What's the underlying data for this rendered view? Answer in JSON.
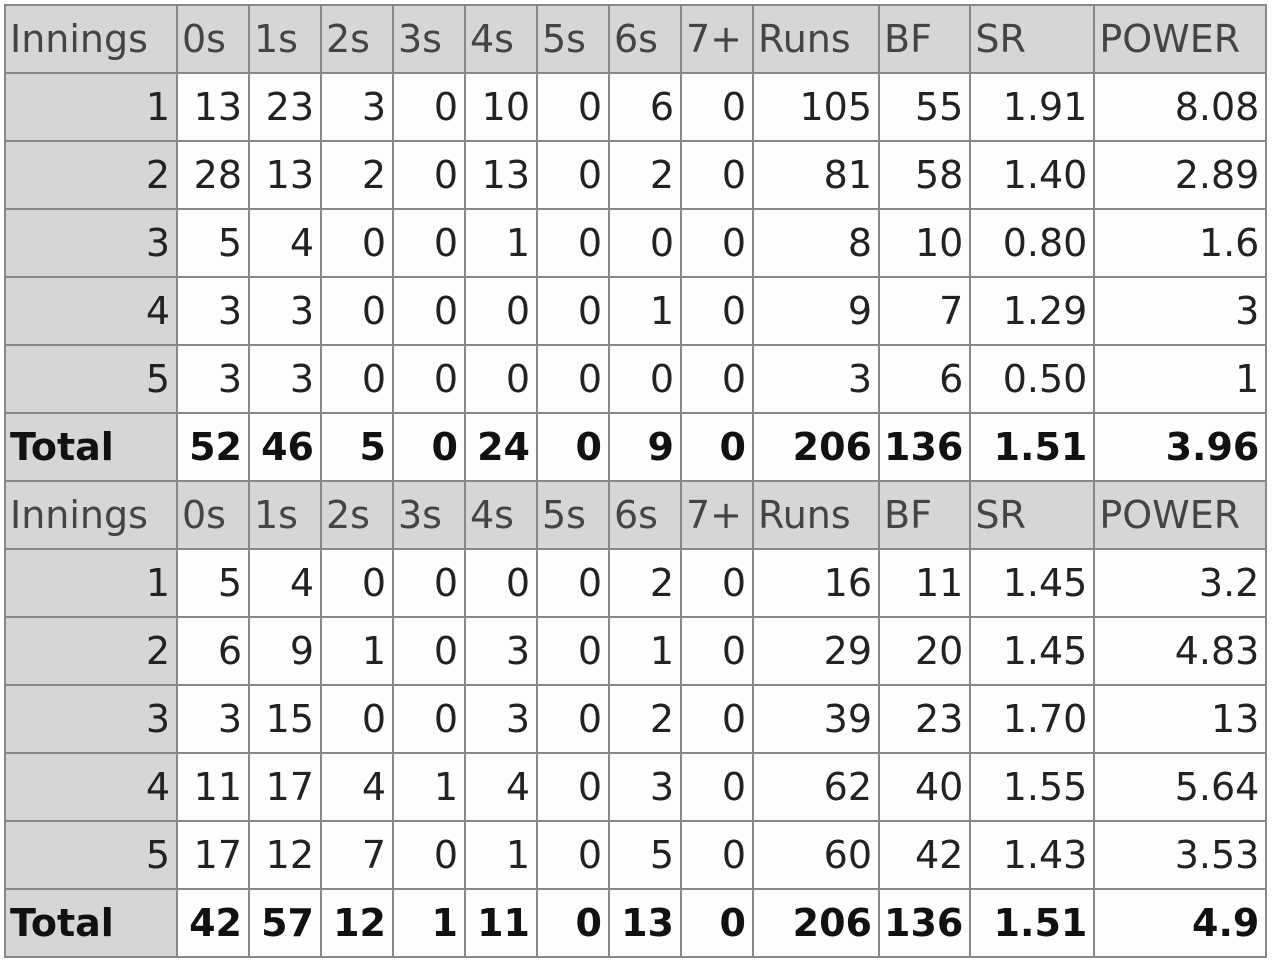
{
  "columns": [
    "Innings",
    "0s",
    "1s",
    "2s",
    "3s",
    "4s",
    "5s",
    "6s",
    "7+",
    "Runs",
    "BF",
    "SR",
    "POWER"
  ],
  "tables": [
    {
      "rows": [
        [
          "1",
          "13",
          "23",
          "3",
          "0",
          "10",
          "0",
          "6",
          "0",
          "105",
          "55",
          "1.91",
          "8.08"
        ],
        [
          "2",
          "28",
          "13",
          "2",
          "0",
          "13",
          "0",
          "2",
          "0",
          "81",
          "58",
          "1.40",
          "2.89"
        ],
        [
          "3",
          "5",
          "4",
          "0",
          "0",
          "1",
          "0",
          "0",
          "0",
          "8",
          "10",
          "0.80",
          "1.6"
        ],
        [
          "4",
          "3",
          "3",
          "0",
          "0",
          "0",
          "0",
          "1",
          "0",
          "9",
          "7",
          "1.29",
          "3"
        ],
        [
          "5",
          "3",
          "3",
          "0",
          "0",
          "0",
          "0",
          "0",
          "0",
          "3",
          "6",
          "0.50",
          "1"
        ]
      ],
      "total": [
        "Total",
        "52",
        "46",
        "5",
        "0",
        "24",
        "0",
        "9",
        "0",
        "206",
        "136",
        "1.51",
        "3.96"
      ]
    },
    {
      "rows": [
        [
          "1",
          "5",
          "4",
          "0",
          "0",
          "0",
          "0",
          "2",
          "0",
          "16",
          "11",
          "1.45",
          "3.2"
        ],
        [
          "2",
          "6",
          "9",
          "1",
          "0",
          "3",
          "0",
          "1",
          "0",
          "29",
          "20",
          "1.45",
          "4.83"
        ],
        [
          "3",
          "3",
          "15",
          "0",
          "0",
          "3",
          "0",
          "2",
          "0",
          "39",
          "23",
          "1.70",
          "13"
        ],
        [
          "4",
          "11",
          "17",
          "4",
          "1",
          "4",
          "0",
          "3",
          "0",
          "62",
          "40",
          "1.55",
          "5.64"
        ],
        [
          "5",
          "17",
          "12",
          "7",
          "0",
          "1",
          "0",
          "5",
          "0",
          "60",
          "42",
          "1.43",
          "3.53"
        ]
      ],
      "total": [
        "Total",
        "42",
        "57",
        "12",
        "1",
        "11",
        "0",
        "13",
        "0",
        "206",
        "136",
        "1.51",
        "4.9"
      ]
    }
  ]
}
